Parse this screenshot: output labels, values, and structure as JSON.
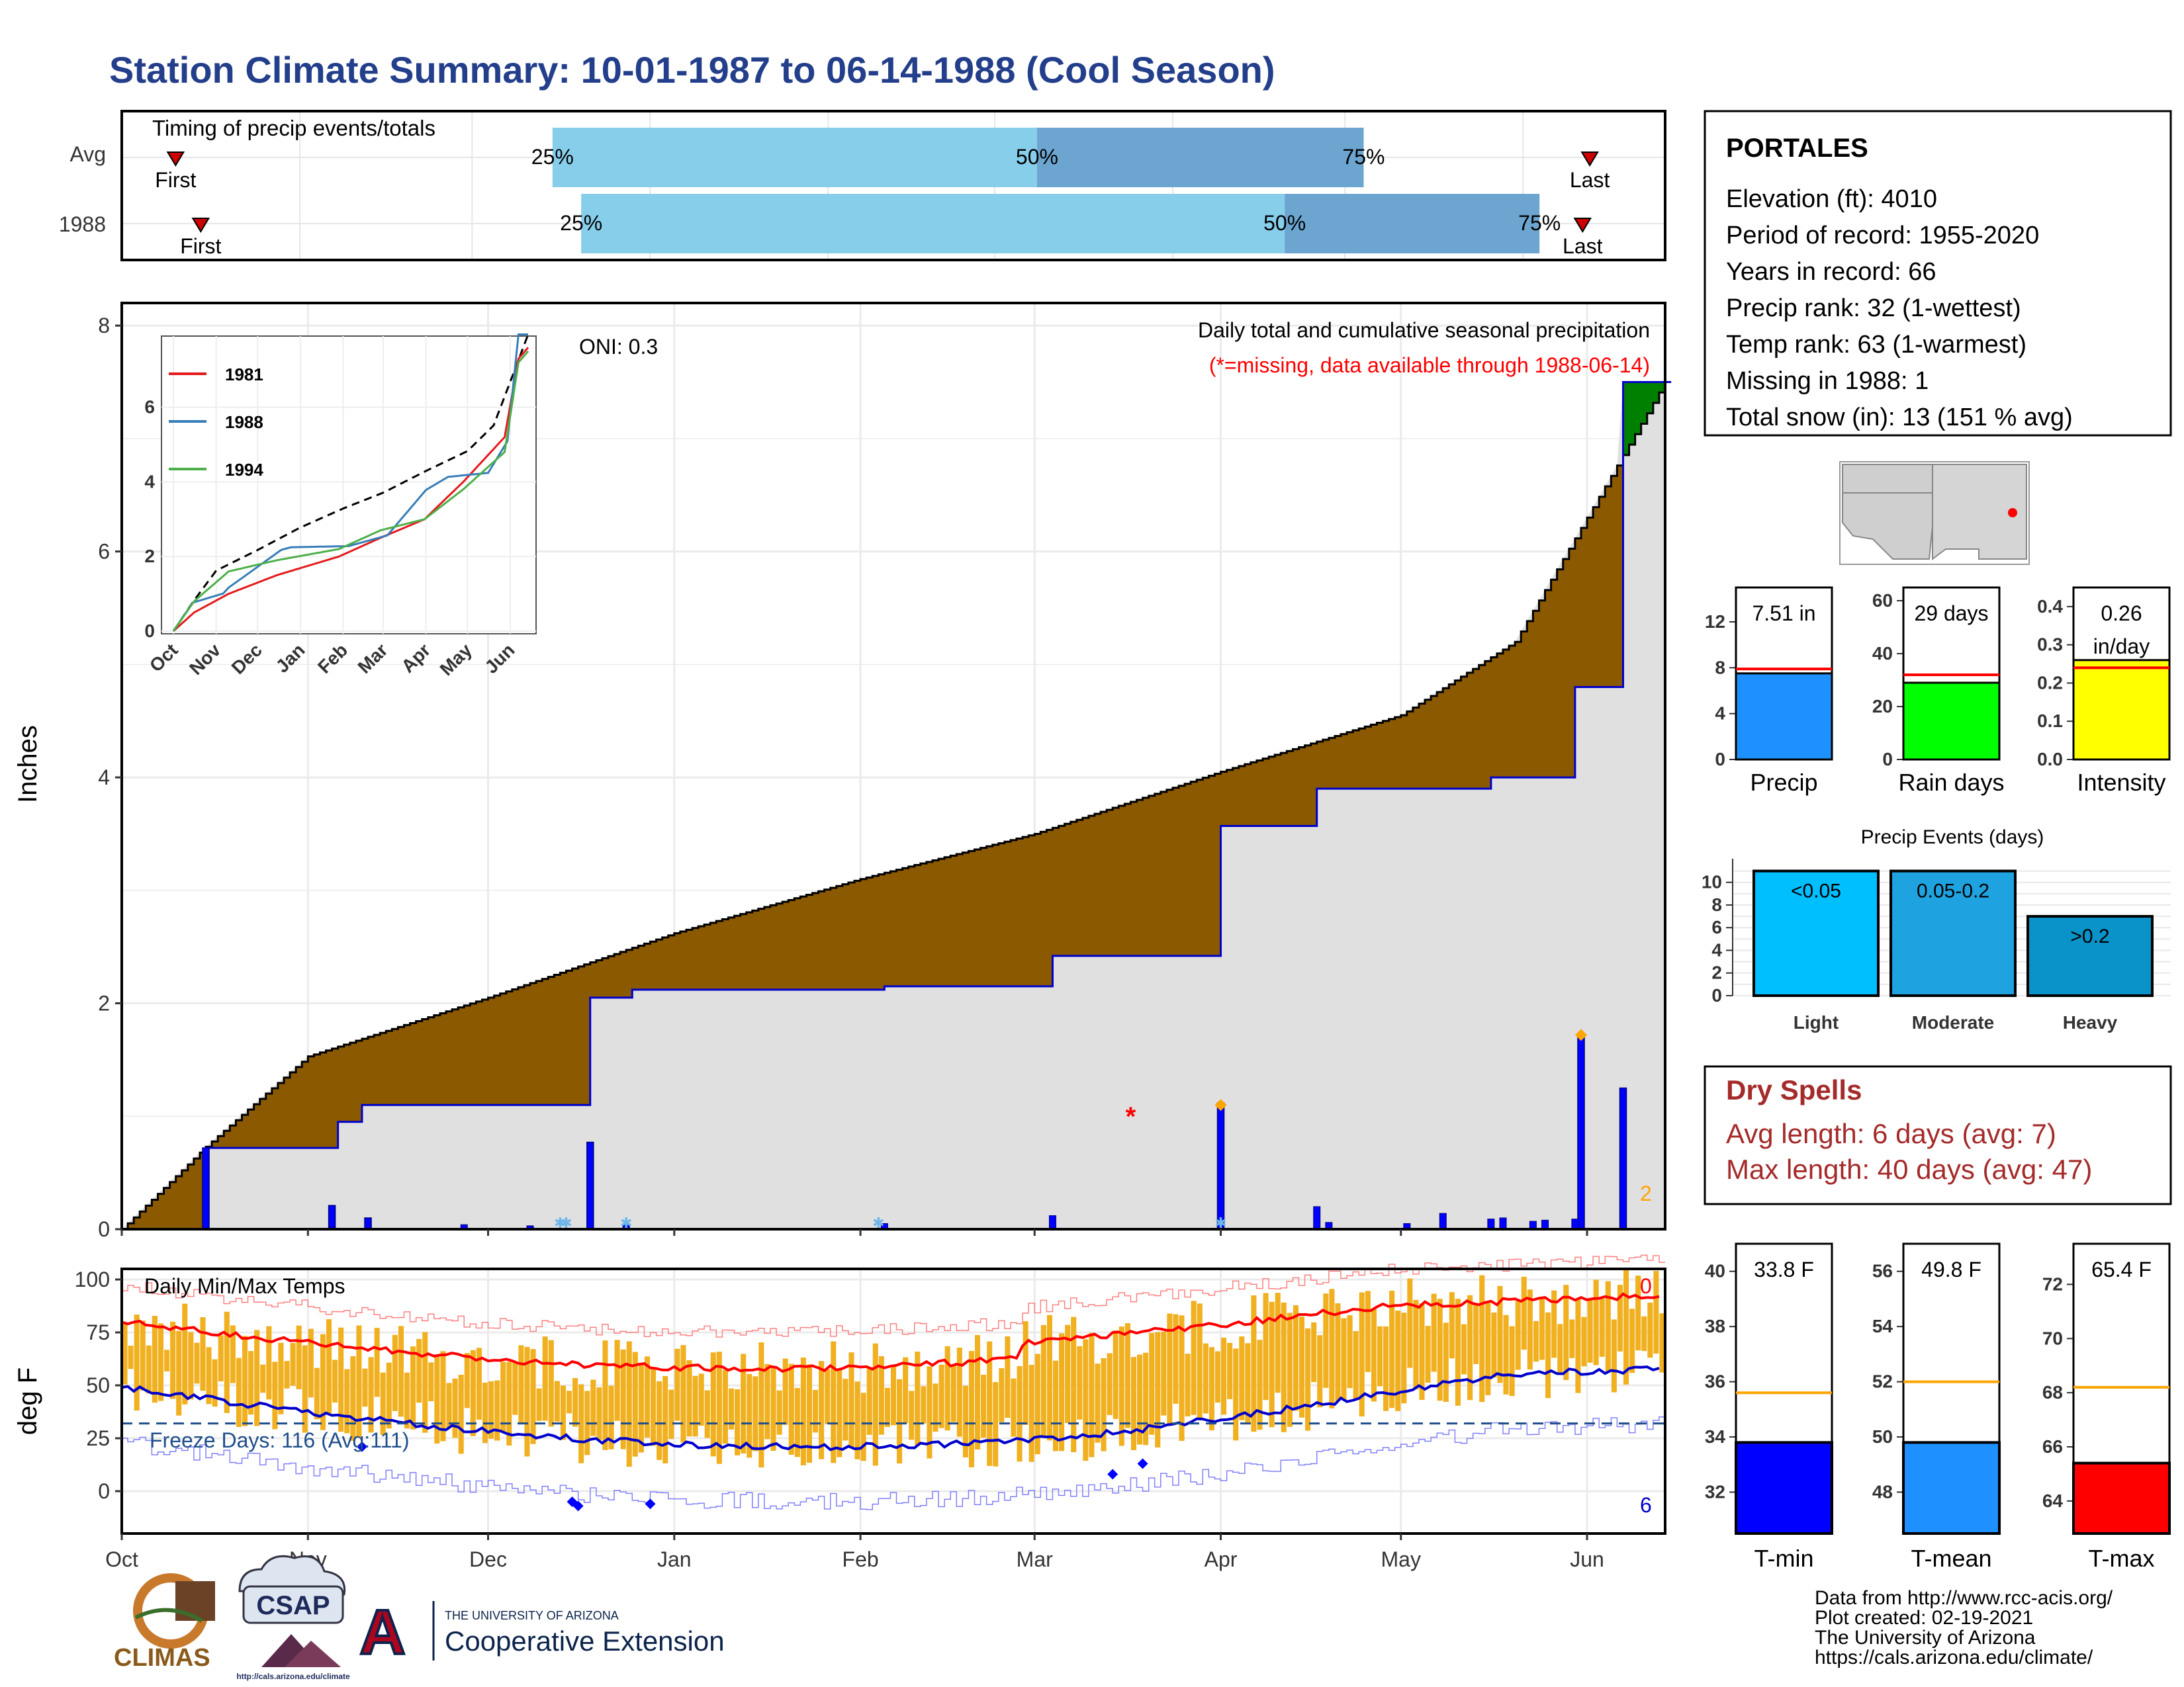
{
  "title": "Station Climate Summary: 10-01-1987 to 06-14-1988 (Cool Season)",
  "months": [
    "Oct",
    "Nov",
    "Dec",
    "Jan",
    "Feb",
    "Mar",
    "Apr",
    "May",
    "Jun"
  ],
  "timing": {
    "title": "Timing of precip events/totals",
    "rows": [
      "Avg",
      "1988"
    ],
    "first_label": "First",
    "last_label": "Last",
    "p25": "25%",
    "p50": "50%",
    "p75": "75%",
    "avg_quartiles_day": [
      120,
      255,
      346
    ],
    "y1988_quartiles_day": [
      128,
      324,
      395
    ],
    "avg_first_last_day": [
      15,
      409
    ],
    "y1988_first_last_day": [
      22,
      407
    ],
    "colors": {
      "light": "#87ceeb",
      "dark": "#6ba5d0",
      "marker": "#cc0000"
    }
  },
  "station": {
    "name": "PORTALES",
    "lines": [
      "Elevation (ft): 4010",
      "Period of record: 1955-2020",
      "Years in record: 66",
      "Precip rank: 32 (1-wettest)",
      "Temp rank: 63 (1-warmest)",
      "Missing in 1988: 1",
      "Total snow (in): 13 (151 % avg)"
    ]
  },
  "precip_panel": {
    "ylabel": "Inches",
    "yticks": [
      "0",
      "2",
      "4",
      "6",
      "8"
    ],
    "caption": "Daily total and cumulative seasonal precipitation",
    "missing_note": "(*=missing, data available through 1988-06-14)",
    "oni": "ONI: 0.3",
    "corner_count": "2",
    "colors": {
      "fill_deficit": "#8b5a00",
      "fill_surplus": "#008000",
      "fill_bg": "#e0e0e0",
      "obs_line": "#0000cc",
      "avg_line": "#000000",
      "bar": "#0000ff",
      "missing": "#ff0000",
      "snow": "#6fb7e8",
      "diamond": "#ffa500"
    }
  },
  "inset": {
    "yticks": [
      "0",
      "2",
      "4",
      "6"
    ],
    "legend": [
      "1981",
      "1988",
      "1994"
    ],
    "colors": [
      "#e41a1c",
      "#377eb8",
      "#4daf4a"
    ]
  },
  "temp_panel": {
    "ylabel": "deg F",
    "yticks": [
      "0",
      "25",
      "50",
      "75",
      "100"
    ],
    "title": "Daily Min/Max Temps",
    "freeze_label": "Freeze Days: 116 (Avg:111)",
    "count_top": "0",
    "count_bottom": "6",
    "colors": {
      "bar": "#f0b020",
      "max_line": "#ff0000",
      "min_line": "#0000cc",
      "freeze": "#1f4e8c"
    }
  },
  "summary_bars": [
    {
      "label": "Precip",
      "value_text": "7.51 in",
      "value": 7.51,
      "avg": 7.9,
      "yticks": [
        "0",
        "4",
        "8",
        "12"
      ],
      "ymax": 15,
      "color": "#1e90ff"
    },
    {
      "label": "Rain days",
      "value_text": "29 days",
      "value": 29,
      "avg": 32,
      "yticks": [
        "0",
        "20",
        "40",
        "60"
      ],
      "ymax": 65,
      "color": "#00ff00"
    },
    {
      "label": "Intensity",
      "value_text": "0.26 in/day",
      "value_line1": "0.26",
      "value_line2": "in/day",
      "value": 0.26,
      "avg": 0.24,
      "yticks": [
        "0.0",
        "0.1",
        "0.2",
        "0.3",
        "0.4"
      ],
      "ymax": 0.45,
      "color": "#ffff00"
    }
  ],
  "precip_events": {
    "title": "Precip Events (days)",
    "categories": [
      "Light",
      "Moderate",
      "Heavy"
    ],
    "bar_labels": [
      "<0.05",
      "0.05-0.2",
      ">0.2"
    ],
    "yticks": [
      "0",
      "2",
      "4",
      "6",
      "8",
      "10"
    ],
    "values": [
      11,
      11,
      7
    ],
    "colors": [
      "#00bfff",
      "#1fa3e0",
      "#0a93c8"
    ]
  },
  "dry_spells": {
    "title": "Dry Spells",
    "avg": "Avg length: 6 days (avg: 7)",
    "max": "Max length: 40 days (avg: 47)"
  },
  "temp_bars": [
    {
      "label": "T-min",
      "value_text": "33.8 F",
      "value": 33.8,
      "avg": 35.6,
      "ymin": 30.5,
      "ymax": 41,
      "yticks": [
        32,
        34,
        36,
        38,
        40
      ],
      "color": "#0000ff"
    },
    {
      "label": "T-mean",
      "value_text": "49.8 F",
      "value": 49.8,
      "avg": 52.0,
      "ymin": 46.5,
      "ymax": 57,
      "yticks": [
        48,
        50,
        52,
        54,
        56
      ],
      "color": "#1e90ff"
    },
    {
      "label": "T-max",
      "value_text": "65.4 F",
      "value": 65.4,
      "avg": 68.2,
      "ymin": 62.8,
      "ymax": 73.5,
      "yticks": [
        64,
        66,
        68,
        70,
        72
      ],
      "color": "#ff0000"
    }
  ],
  "footer": {
    "lines": [
      "Data from http://www.rcc-acis.org/",
      "Plot created: 02-19-2021",
      "The University of Arizona",
      "https://cals.arizona.edu/climate/"
    ],
    "logo_climas": "CLIMAS",
    "logo_csap": "CSAP",
    "logo_csap_url": "http://cals.arizona.edu/climate",
    "logo_ua_top": "THE UNIVERSITY OF ARIZONA",
    "logo_ua_bottom": "Cooperative Extension"
  },
  "chart_data": {
    "type": "area",
    "x_unit": "date",
    "x_range": [
      "1987-10-01",
      "1988-06-14"
    ],
    "y_range": [
      0,
      8.2
    ],
    "avg_cumulative": {
      "x": [
        "1987-10-01",
        "1987-10-15",
        "1987-11-01",
        "1987-12-01",
        "1988-01-01",
        "1988-02-01",
        "1988-03-01",
        "1988-04-01",
        "1988-05-01",
        "1988-05-20",
        "1988-06-01",
        "1988-06-14"
      ],
      "y": [
        0,
        0.73,
        1.53,
        2.05,
        2.62,
        3.1,
        3.5,
        4.05,
        4.55,
        5.2,
        6.3,
        7.5
      ]
    },
    "obs_cumulative": {
      "x": [
        "1987-10-01",
        "1987-10-15",
        "1987-11-06",
        "1987-11-10",
        "1987-12-18",
        "1987-12-25",
        "1988-02-05",
        "1988-03-04",
        "1988-04-01",
        "1988-04-17",
        "1988-05-16",
        "1988-05-30",
        "1988-06-07",
        "1988-06-14"
      ],
      "y": [
        0,
        0.72,
        0.95,
        1.1,
        2.05,
        2.12,
        2.15,
        2.42,
        3.57,
        3.9,
        4.0,
        4.8,
        7.5,
        7.5
      ]
    },
    "daily_events": [
      {
        "date": "1987-10-15",
        "inches": 0.72
      },
      {
        "date": "1987-11-05",
        "inches": 0.21
      },
      {
        "date": "1987-11-11",
        "inches": 0.1
      },
      {
        "date": "1987-12-18",
        "inches": 0.77
      },
      {
        "date": "1988-04-01",
        "inches": 1.12
      },
      {
        "date": "1988-05-31",
        "inches": 1.7
      },
      {
        "date": "1988-06-07",
        "inches": 1.25
      }
    ],
    "missing_date": "1988-03-17",
    "temp_y_range": [
      -20,
      105
    ],
    "freeze_line": 32
  }
}
